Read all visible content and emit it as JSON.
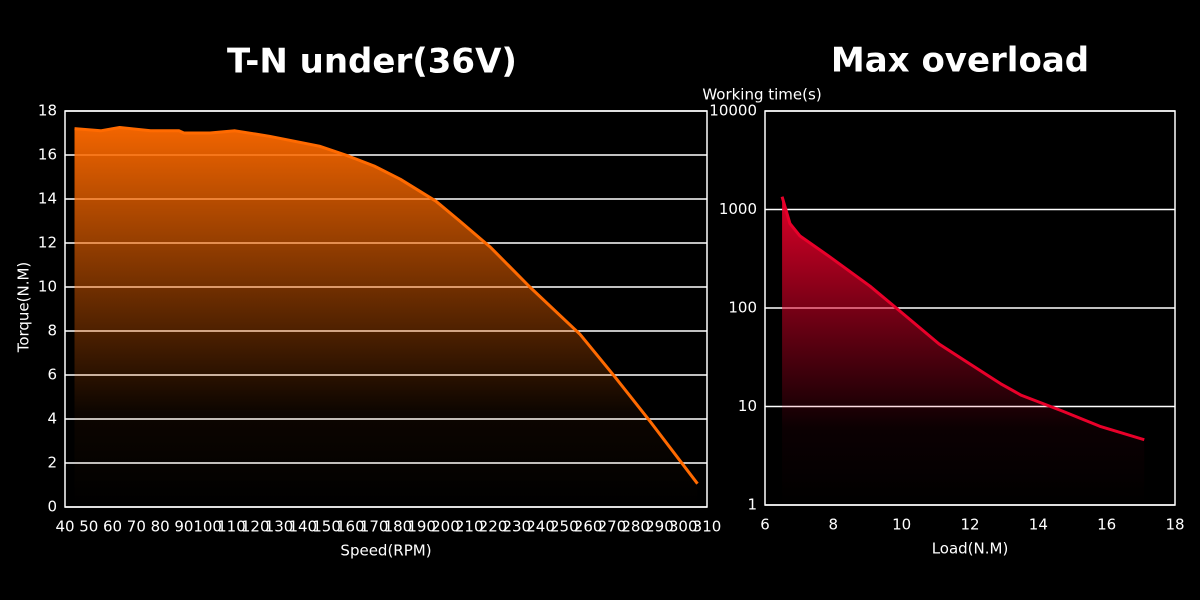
{
  "chart_data": [
    {
      "type": "area",
      "title": "T-N under(36V)",
      "x_label": "Speed(RPM)",
      "y_label": "Torque(N.M)",
      "color": "#ff6a00",
      "x": [
        44,
        55,
        63,
        76,
        88,
        90,
        101,
        111.5,
        126,
        147,
        158,
        170,
        181,
        196,
        206,
        219,
        235.5,
        256.6,
        271,
        286,
        306
      ],
      "values": [
        17.2,
        17.1,
        17.25,
        17.1,
        17.1,
        17.0,
        17.0,
        17.1,
        16.85,
        16.4,
        16.0,
        15.5,
        14.9,
        13.9,
        13.0,
        11.8,
        10.0,
        7.85,
        5.95,
        3.9,
        1.06
      ],
      "xlim": [
        40,
        310
      ],
      "xticks": [
        40,
        50,
        60,
        70,
        80,
        90,
        100,
        110,
        120,
        130,
        140,
        150,
        160,
        170,
        180,
        190,
        200,
        210,
        220,
        230,
        240,
        250,
        260,
        270,
        280,
        290,
        300,
        310
      ],
      "ylim": [
        0,
        18
      ],
      "yticks": [
        0,
        2,
        4,
        6,
        8,
        10,
        12,
        14,
        16,
        18
      ],
      "grid": true
    },
    {
      "type": "area",
      "title": "Max overload",
      "x_label": "Load(N.M)",
      "y_label": "Working time(s)",
      "color": "#e8002a",
      "ylog": true,
      "x": [
        6.5,
        6.73,
        7.02,
        7.9,
        9.07,
        9.95,
        11.1,
        12.0,
        12.9,
        13.5,
        14.7,
        15.8,
        17.1
      ],
      "values": [
        1350,
        720,
        540,
        330,
        167,
        93,
        43,
        27,
        17,
        13,
        9,
        6.3,
        4.6
      ],
      "xlim": [
        6,
        18
      ],
      "xticks": [
        6,
        8,
        10,
        12,
        14,
        16,
        18
      ],
      "ylim": [
        1,
        10000
      ],
      "yticks": [
        1,
        10,
        100,
        1000,
        10000
      ],
      "grid": true
    }
  ]
}
